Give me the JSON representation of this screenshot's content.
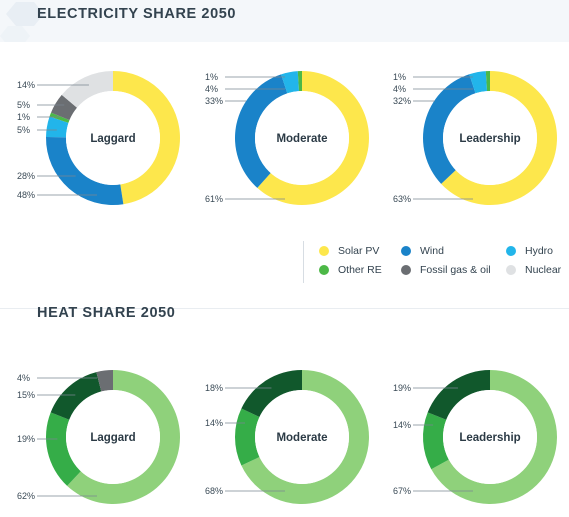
{
  "titles": {
    "electricity": "ELECTRICITY SHARE 2050",
    "heat": "HEAT SHARE 2050"
  },
  "colors": {
    "solar_pv": "#fde74c",
    "wind": "#1a83c9",
    "hydro": "#22b5ea",
    "other_re": "#4cb847",
    "fossil": "#6b6e72",
    "nuclear": "#dfe1e3",
    "heat_light": "#8fd17b",
    "heat_mid": "#35ad48",
    "heat_dark": "#11582c",
    "heat_grey": "#6b6e72",
    "label_text": "#3a4a56",
    "leader_line": "#7a8690"
  },
  "legend": [
    {
      "label": "Solar PV",
      "color": "#fde74c"
    },
    {
      "label": "Wind",
      "color": "#1a83c9"
    },
    {
      "label": "Hydro",
      "color": "#22b5ea"
    },
    {
      "label": "Other RE",
      "color": "#4cb847"
    },
    {
      "label": "Fossil gas & oil",
      "color": "#6b6e72"
    },
    {
      "label": "Nuclear",
      "color": "#dfe1e3"
    }
  ],
  "chart_data": [
    {
      "type": "pie",
      "title": "Laggard",
      "group": "ELECTRICITY SHARE 2050",
      "slices": [
        {
          "label": "Solar PV",
          "value": 48,
          "text": "48%"
        },
        {
          "label": "Wind",
          "value": 28,
          "text": "28%"
        },
        {
          "label": "Hydro",
          "value": 5,
          "text": "5%"
        },
        {
          "label": "Other RE",
          "value": 1,
          "text": "1%"
        },
        {
          "label": "Fossil gas & oil",
          "value": 5,
          "text": "5%"
        },
        {
          "label": "Nuclear",
          "value": 14,
          "text": "14%"
        }
      ]
    },
    {
      "type": "pie",
      "title": "Moderate",
      "group": "ELECTRICITY SHARE 2050",
      "slices": [
        {
          "label": "Solar PV",
          "value": 61,
          "text": "61%"
        },
        {
          "label": "Wind",
          "value": 33,
          "text": "33%"
        },
        {
          "label": "Hydro",
          "value": 4,
          "text": "4%"
        },
        {
          "label": "Other RE",
          "value": 1,
          "text": "1%"
        }
      ]
    },
    {
      "type": "pie",
      "title": "Leadership",
      "group": "ELECTRICITY SHARE 2050",
      "slices": [
        {
          "label": "Solar PV",
          "value": 63,
          "text": "63%"
        },
        {
          "label": "Wind",
          "value": 32,
          "text": "32%"
        },
        {
          "label": "Hydro",
          "value": 4,
          "text": "4%"
        },
        {
          "label": "Other RE",
          "value": 1,
          "text": "1%"
        }
      ]
    },
    {
      "type": "pie",
      "title": "Laggard",
      "group": "HEAT SHARE 2050",
      "slices": [
        {
          "value": 62,
          "text": "62%"
        },
        {
          "value": 19,
          "text": "19%"
        },
        {
          "value": 15,
          "text": "15%"
        },
        {
          "value": 4,
          "text": "4%"
        }
      ]
    },
    {
      "type": "pie",
      "title": "Moderate",
      "group": "HEAT SHARE 2050",
      "slices": [
        {
          "value": 68,
          "text": "68%"
        },
        {
          "value": 14,
          "text": "14%"
        },
        {
          "value": 18,
          "text": "18%"
        }
      ]
    },
    {
      "type": "pie",
      "title": "Leadership",
      "group": "HEAT SHARE 2050",
      "slices": [
        {
          "value": 67,
          "text": "67%"
        },
        {
          "value": 14,
          "text": "14%"
        },
        {
          "value": 19,
          "text": "19%"
        }
      ]
    }
  ]
}
